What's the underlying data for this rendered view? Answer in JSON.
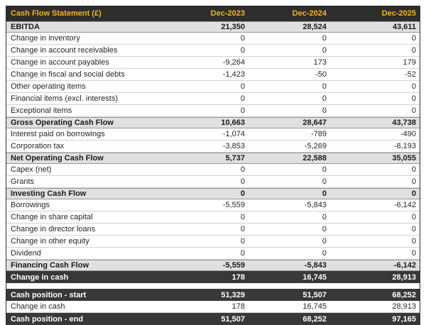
{
  "colors": {
    "accent_gold": "#F5B41E",
    "header_bg": "#2D2D2D",
    "section_row_bg": "#E0E0E0",
    "dark_row_bg": "#383838",
    "row_divider": "#D2D2D2"
  },
  "chart_data": {
    "type": "table",
    "title": "Cash Flow Statement (£)",
    "columns": [
      "Dec-2023",
      "Dec-2024",
      "Dec-2025"
    ],
    "rows": [
      {
        "label": "EBITDA",
        "values": [
          "21,350",
          "28,524",
          "43,611"
        ],
        "style": "section"
      },
      {
        "label": "Change in inventory",
        "values": [
          "0",
          "0",
          "0"
        ],
        "style": "normal"
      },
      {
        "label": "Change in account receivables",
        "values": [
          "0",
          "0",
          "0"
        ],
        "style": "normal"
      },
      {
        "label": "Change in account payables",
        "values": [
          "-9,264",
          "173",
          "179"
        ],
        "style": "normal"
      },
      {
        "label": "Change in fiscal and social debts",
        "values": [
          "-1,423",
          "-50",
          "-52"
        ],
        "style": "normal"
      },
      {
        "label": "Other operating items",
        "values": [
          "0",
          "0",
          "0"
        ],
        "style": "normal"
      },
      {
        "label": "Financial items (excl. interests)",
        "values": [
          "0",
          "0",
          "0"
        ],
        "style": "normal"
      },
      {
        "label": "Exceptional items",
        "values": [
          "0",
          "0",
          "0"
        ],
        "style": "normal"
      },
      {
        "label": "Gross Operating Cash Flow",
        "values": [
          "10,663",
          "28,647",
          "43,738"
        ],
        "style": "section"
      },
      {
        "label": "Interest paid on borrowings",
        "values": [
          "-1,074",
          "-789",
          "-490"
        ],
        "style": "normal"
      },
      {
        "label": "Corporation tax",
        "values": [
          "-3,853",
          "-5,269",
          "-8,193"
        ],
        "style": "normal"
      },
      {
        "label": "Net Operating Cash Flow",
        "values": [
          "5,737",
          "22,588",
          "35,055"
        ],
        "style": "section"
      },
      {
        "label": "Capex (net)",
        "values": [
          "0",
          "0",
          "0"
        ],
        "style": "normal"
      },
      {
        "label": "Grants",
        "values": [
          "0",
          "0",
          "0"
        ],
        "style": "normal"
      },
      {
        "label": "Investing Cash Flow",
        "values": [
          "0",
          "0",
          "0"
        ],
        "style": "section"
      },
      {
        "label": "Borrowings",
        "values": [
          "-5,559",
          "-5,843",
          "-6,142"
        ],
        "style": "normal"
      },
      {
        "label": "Change in share capital",
        "values": [
          "0",
          "0",
          "0"
        ],
        "style": "normal"
      },
      {
        "label": "Change in director loans",
        "values": [
          "0",
          "0",
          "0"
        ],
        "style": "normal"
      },
      {
        "label": "Change in other equity",
        "values": [
          "0",
          "0",
          "0"
        ],
        "style": "normal"
      },
      {
        "label": "Dividend",
        "values": [
          "0",
          "0",
          "0"
        ],
        "style": "normal"
      },
      {
        "label": "Financing Cash Flow",
        "values": [
          "-5,559",
          "-5,843",
          "-6,142"
        ],
        "style": "section"
      },
      {
        "label": "Change in cash",
        "values": [
          "178",
          "16,745",
          "28,913"
        ],
        "style": "dark"
      },
      {
        "label": "",
        "values": [],
        "style": "gap"
      },
      {
        "label": "Cash position - start",
        "values": [
          "51,329",
          "51,507",
          "68,252"
        ],
        "style": "dark"
      },
      {
        "label": "Change in cash",
        "values": [
          "178",
          "16,745",
          "28,913"
        ],
        "style": "normal"
      },
      {
        "label": "Cash position - end",
        "values": [
          "51,507",
          "68,252",
          "97,165"
        ],
        "style": "dark"
      }
    ]
  }
}
